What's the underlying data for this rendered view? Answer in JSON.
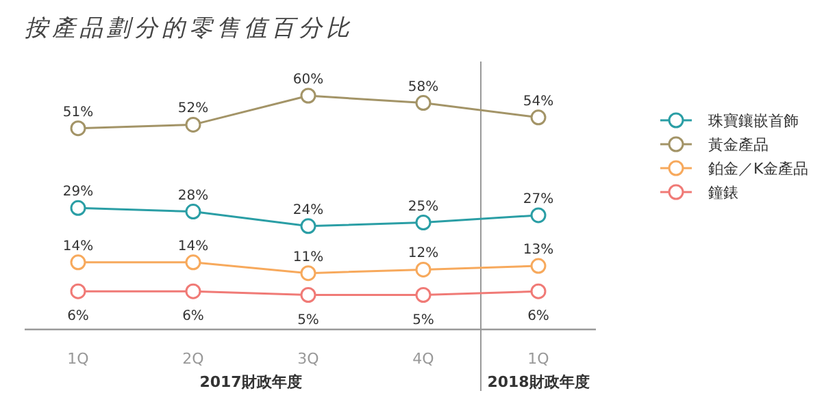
{
  "chart_data": {
    "type": "line",
    "title": "按產品劃分的零售值百分比",
    "categories": [
      "1Q",
      "2Q",
      "3Q",
      "4Q",
      "1Q"
    ],
    "series": [
      {
        "name": "珠寶鑲嵌首飾",
        "color": "#2a9ea5",
        "values": [
          29,
          28,
          24,
          25,
          27
        ],
        "value_labels": [
          "29%",
          "28%",
          "24%",
          "25%",
          "27%"
        ]
      },
      {
        "name": "黃金產品",
        "color": "#a39467",
        "values": [
          51,
          52,
          60,
          58,
          54
        ],
        "value_labels": [
          "51%",
          "52%",
          "60%",
          "58%",
          "54%"
        ]
      },
      {
        "name": "鉑金／K金產品",
        "color": "#f7a95c",
        "values": [
          14,
          14,
          11,
          12,
          13
        ],
        "value_labels": [
          "14%",
          "14%",
          "11%",
          "12%",
          "13%"
        ]
      },
      {
        "name": "鐘錶",
        "color": "#f07a76",
        "values": [
          6,
          6,
          5,
          5,
          6
        ],
        "value_labels": [
          "6%",
          "6%",
          "5%",
          "5%",
          "6%"
        ]
      }
    ],
    "annotations": [
      "2017財政年度",
      "2018財政年度"
    ],
    "marker": "circle",
    "line_style": "solid",
    "legend": "right"
  }
}
